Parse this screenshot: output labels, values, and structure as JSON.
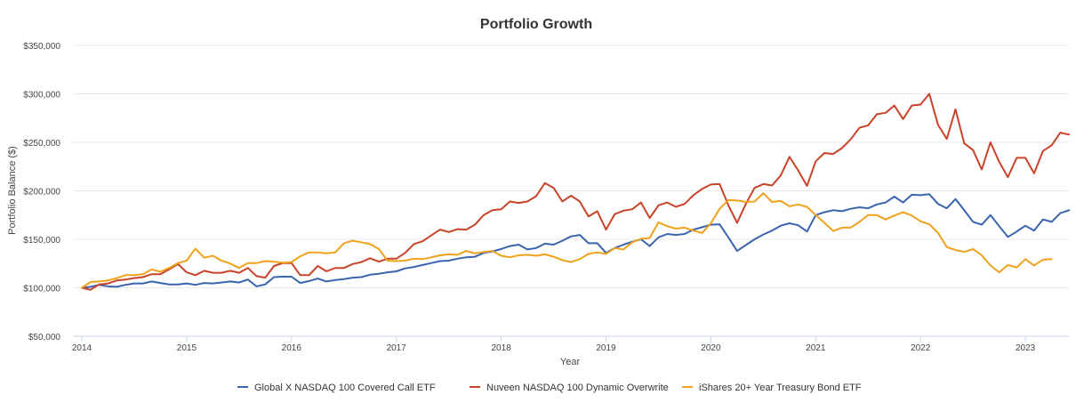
{
  "chart_data": {
    "type": "line",
    "title": "Portfolio Growth",
    "xlabel": "Year",
    "ylabel": "Portfolio Balance ($)",
    "x_start": "2014-01",
    "x_step": "month",
    "xlim": [
      2014,
      2023.45
    ],
    "ylim": [
      50000,
      350000
    ],
    "grid": true,
    "legend_position": "bottom",
    "x_ticks": [
      "2014",
      "2015",
      "2016",
      "2017",
      "2018",
      "2019",
      "2020",
      "2021",
      "2022",
      "2023"
    ],
    "y_ticks": [
      "$50,000",
      "$100,000",
      "$150,000",
      "$200,000",
      "$250,000",
      "$300,000",
      "$350,000"
    ],
    "y_tick_values": [
      50000,
      100000,
      150000,
      200000,
      250000,
      300000,
      350000
    ],
    "series": [
      {
        "name": "Global X NASDAQ 100 Covered Call ETF",
        "color": "#3a64ad",
        "values": [
          100000,
          101000,
          103000,
          101500,
          101000,
          103000,
          104500,
          104500,
          106500,
          105000,
          103500,
          103500,
          104500,
          103000,
          105000,
          104500,
          105500,
          106500,
          105500,
          108500,
          101500,
          103500,
          111000,
          111500,
          111500,
          105000,
          107000,
          109500,
          106500,
          108000,
          109000,
          110500,
          111000,
          113500,
          114500,
          116000,
          117000,
          120000,
          121500,
          123500,
          125500,
          127500,
          128000,
          130000,
          131500,
          132000,
          136000,
          137500,
          140000,
          143000,
          144500,
          139500,
          141000,
          145500,
          144500,
          148500,
          153000,
          154500,
          146000,
          146000,
          136000,
          141000,
          144500,
          147500,
          150000,
          143000,
          152000,
          155500,
          154500,
          155500,
          160000,
          162500,
          165000,
          165500,
          152000,
          138000,
          144000,
          150000,
          155000,
          159000,
          164000,
          166500,
          164500,
          158000,
          175000,
          178000,
          180000,
          179000,
          181500,
          183000,
          182000,
          186000,
          188000,
          194000,
          188000,
          196000,
          195500,
          196500,
          186500,
          182000,
          191500,
          180000,
          168000,
          165000,
          175000,
          163500,
          152500,
          158000,
          164000,
          159000,
          170500,
          168000,
          177000,
          180000
        ]
      },
      {
        "name": "Nuveen NASDAQ 100 Dynamic Overwrite",
        "color": "#c8432a",
        "values": [
          100000,
          98000,
          103500,
          104500,
          107500,
          108500,
          110000,
          111000,
          114000,
          114000,
          119000,
          124500,
          116000,
          113000,
          117500,
          115500,
          115500,
          117500,
          115500,
          120500,
          112000,
          110500,
          122500,
          125500,
          125500,
          113000,
          113000,
          122500,
          117000,
          120500,
          120500,
          124500,
          126500,
          130500,
          127000,
          130000,
          130000,
          136000,
          145000,
          148000,
          154000,
          160000,
          157500,
          160500,
          160000,
          165000,
          175000,
          180000,
          181000,
          189000,
          187500,
          189000,
          194500,
          208000,
          203000,
          189000,
          195000,
          189000,
          173500,
          179000,
          160000,
          176000,
          179500,
          181000,
          188000,
          172000,
          185000,
          188000,
          183500,
          186500,
          195500,
          202000,
          206500,
          207000,
          185000,
          167000,
          186500,
          203000,
          207000,
          205500,
          216000,
          235000,
          221000,
          205000,
          230500,
          239000,
          238000,
          244000,
          253000,
          265000,
          267500,
          279000,
          280500,
          288000,
          274000,
          288000,
          289000,
          300000,
          268000,
          253500,
          284000,
          249000,
          242000,
          222000,
          250000,
          230000,
          214000,
          234000,
          234000,
          218000,
          241000,
          247000,
          260000,
          258000
        ]
      },
      {
        "name": "iShares 20+ Year Treasury Bond ETF",
        "color": "#f0a21d",
        "values": [
          100000,
          106000,
          106500,
          107500,
          110000,
          113000,
          113000,
          114000,
          119000,
          116500,
          120500,
          125500,
          128000,
          140500,
          131000,
          133000,
          128000,
          125000,
          120500,
          125500,
          125500,
          127500,
          127000,
          126000,
          126500,
          132500,
          136500,
          136500,
          135500,
          136500,
          146000,
          148500,
          147000,
          145000,
          140000,
          128000,
          127500,
          128000,
          130000,
          129500,
          131500,
          133500,
          134500,
          134000,
          138000,
          135500,
          137000,
          138000,
          133000,
          131500,
          133500,
          134000,
          133000,
          134500,
          132000,
          128500,
          126500,
          129500,
          135000,
          136500,
          135000,
          141000,
          139500,
          147000,
          150500,
          151500,
          167500,
          163500,
          161000,
          162000,
          159000,
          156500,
          166500,
          181500,
          190500,
          190000,
          188500,
          189000,
          197500,
          188500,
          189500,
          184000,
          186000,
          183500,
          175000,
          167000,
          158500,
          162000,
          162000,
          168000,
          175000,
          175000,
          170500,
          174500,
          178000,
          174500,
          168500,
          165500,
          156500,
          142000,
          139000,
          137000,
          140000,
          133500,
          123000,
          116000,
          123500,
          121000,
          129500,
          123000,
          129000,
          129500
        ]
      }
    ]
  }
}
